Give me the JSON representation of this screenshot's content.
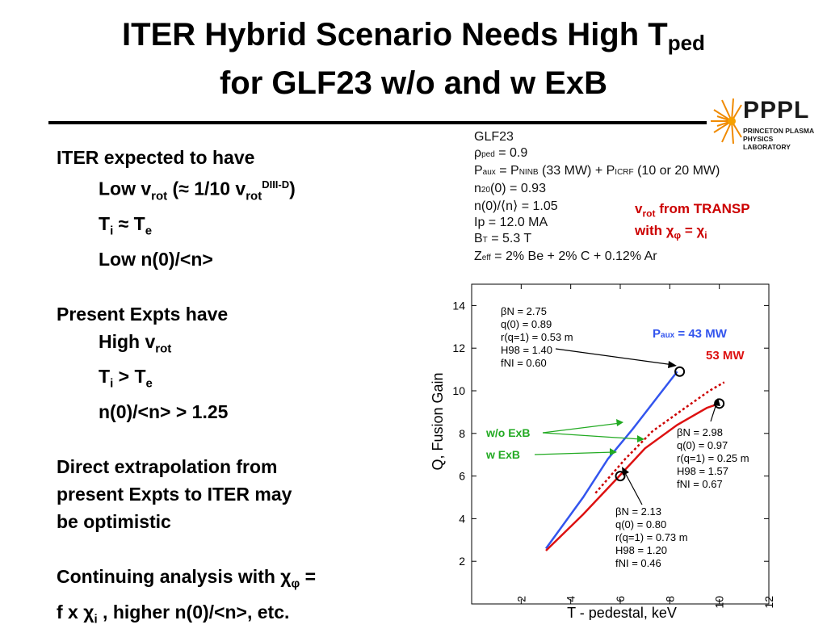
{
  "slide": {
    "title_main": "ITER Hybrid Scenario Needs High T",
    "title_sub": "ped",
    "title_line2": "for GLF23 w/o and w ExB"
  },
  "logo": {
    "name": "PPPL",
    "line1": "PRINCETON PLASMA",
    "line2": "PHYSICS LABORATORY"
  },
  "left": {
    "l1": "ITER expected to have",
    "l2_a": "Low v",
    "l2_sub": "rot",
    "l2_b": " (≈ 1/10 v",
    "l2_sub2": "rot",
    "l2_sup": "DIII-D",
    "l2_c": ")",
    "l3_a": "T",
    "l3_sub": "i",
    "l3_b": " ≈ T",
    "l3_sub2": "e",
    "l4": "Low n(0)/<n>",
    "l5": "Present Expts have",
    "l6_a": "High v",
    "l6_sub": "rot",
    "l7_a": "T",
    "l7_sub": "i",
    "l7_b": " > T",
    "l7_sub2": "e",
    "l8": "n(0)/<n> > 1.25",
    "l9": "Direct extrapolation from",
    "l10": "present Expts to ITER may",
    "l11": "be optimistic",
    "l12_a": "Continuing analysis with χ",
    "l12_sub": "φ",
    "l12_b": " =",
    "l13_a": "f x χ",
    "l13_sub": "i",
    "l13_b": " , higher n(0)/<n>, etc."
  },
  "params": {
    "p1": "GLF23",
    "p2_a": "ρ",
    "p2_sub": "ped",
    "p2_b": " = 0.9",
    "p3_a": "P",
    "p3_sub": "aux",
    "p3_b": " = P",
    "p3_sub2": "NINB",
    "p3_c": " (33 MW) + P",
    "p3_sub3": "ICRF",
    "p3_d": " (10 or 20 MW)",
    "p4_a": "n",
    "p4_sub": "20",
    "p4_b": "(0) = 0.93",
    "p5": "n(0)/⟨n⟩ = 1.05",
    "p6": "Ip = 12.0 MA",
    "p7_a": "B",
    "p7_sub": "T",
    "p7_b": " = 5.3 T",
    "p8_a": "Z",
    "p8_sub": "eff",
    "p8_b": " = 2% Be + 2% C + 0.12% Ar"
  },
  "transp": {
    "a": "v",
    "sub": "rot",
    "b": " from TRANSP",
    "c": "with χ",
    "sub2": "φ",
    "d": " =  χ",
    "sub3": "i"
  },
  "chart_data": {
    "type": "line",
    "xlabel": "T - pedestal, keV",
    "ylabel": "Q, Fusion Gain",
    "xlim": [
      0,
      12
    ],
    "ylim": [
      0,
      15
    ],
    "xticks": [
      "2",
      "4",
      "6",
      "8",
      "10",
      "12"
    ],
    "yticks": [
      "2",
      "4",
      "6",
      "8",
      "10",
      "12",
      "14"
    ],
    "series": [
      {
        "name": "P",
        "name_sub": "aux",
        "name_b": " = 43 MW",
        "color": "#3355ee",
        "style": "solid",
        "x": [
          3.0,
          4.5,
          5.5,
          6.5,
          7.5,
          8.3
        ],
        "y": [
          2.6,
          5.0,
          6.8,
          8.2,
          9.7,
          10.9
        ]
      },
      {
        "name": "53 MW",
        "color": "#dd1111",
        "style": "solid",
        "x": [
          3.0,
          4.5,
          5.8,
          7.0,
          8.3,
          9.5,
          10.0
        ],
        "y": [
          2.5,
          4.2,
          5.8,
          7.3,
          8.4,
          9.2,
          9.4
        ]
      },
      {
        "name": "w/o ExB",
        "color": "#cc0000",
        "style": "dotted",
        "x": [
          5.0,
          6.2,
          7.3,
          8.5,
          9.6,
          10.2
        ],
        "y": [
          5.2,
          6.8,
          8.1,
          9.1,
          10.0,
          10.4
        ]
      }
    ],
    "markers": [
      {
        "x": 8.4,
        "y": 10.9
      },
      {
        "x": 10.0,
        "y": 9.4
      },
      {
        "x": 6.0,
        "y": 6.0
      }
    ],
    "annotations": {
      "a1": [
        "βN = 2.75",
        "q(0) = 0.89",
        "r(q=1) = 0.53 m",
        "H98 = 1.40",
        "fNI = 0.60"
      ],
      "a2": [
        "βN = 2.98",
        "q(0) = 0.97",
        "r(q=1) = 0.25 m",
        "H98 = 1.57",
        "fNI = 0.67"
      ],
      "a3": [
        "βN = 2.13",
        "q(0) = 0.80",
        "r(q=1) = 0.73 m",
        "H98 = 1.20",
        "fNI = 0.46"
      ],
      "wo_exb": "w/o ExB",
      "w_exb": "w ExB"
    },
    "colors": {
      "blue": "#3355ee",
      "red": "#dd1111",
      "green": "#22aa22"
    }
  }
}
